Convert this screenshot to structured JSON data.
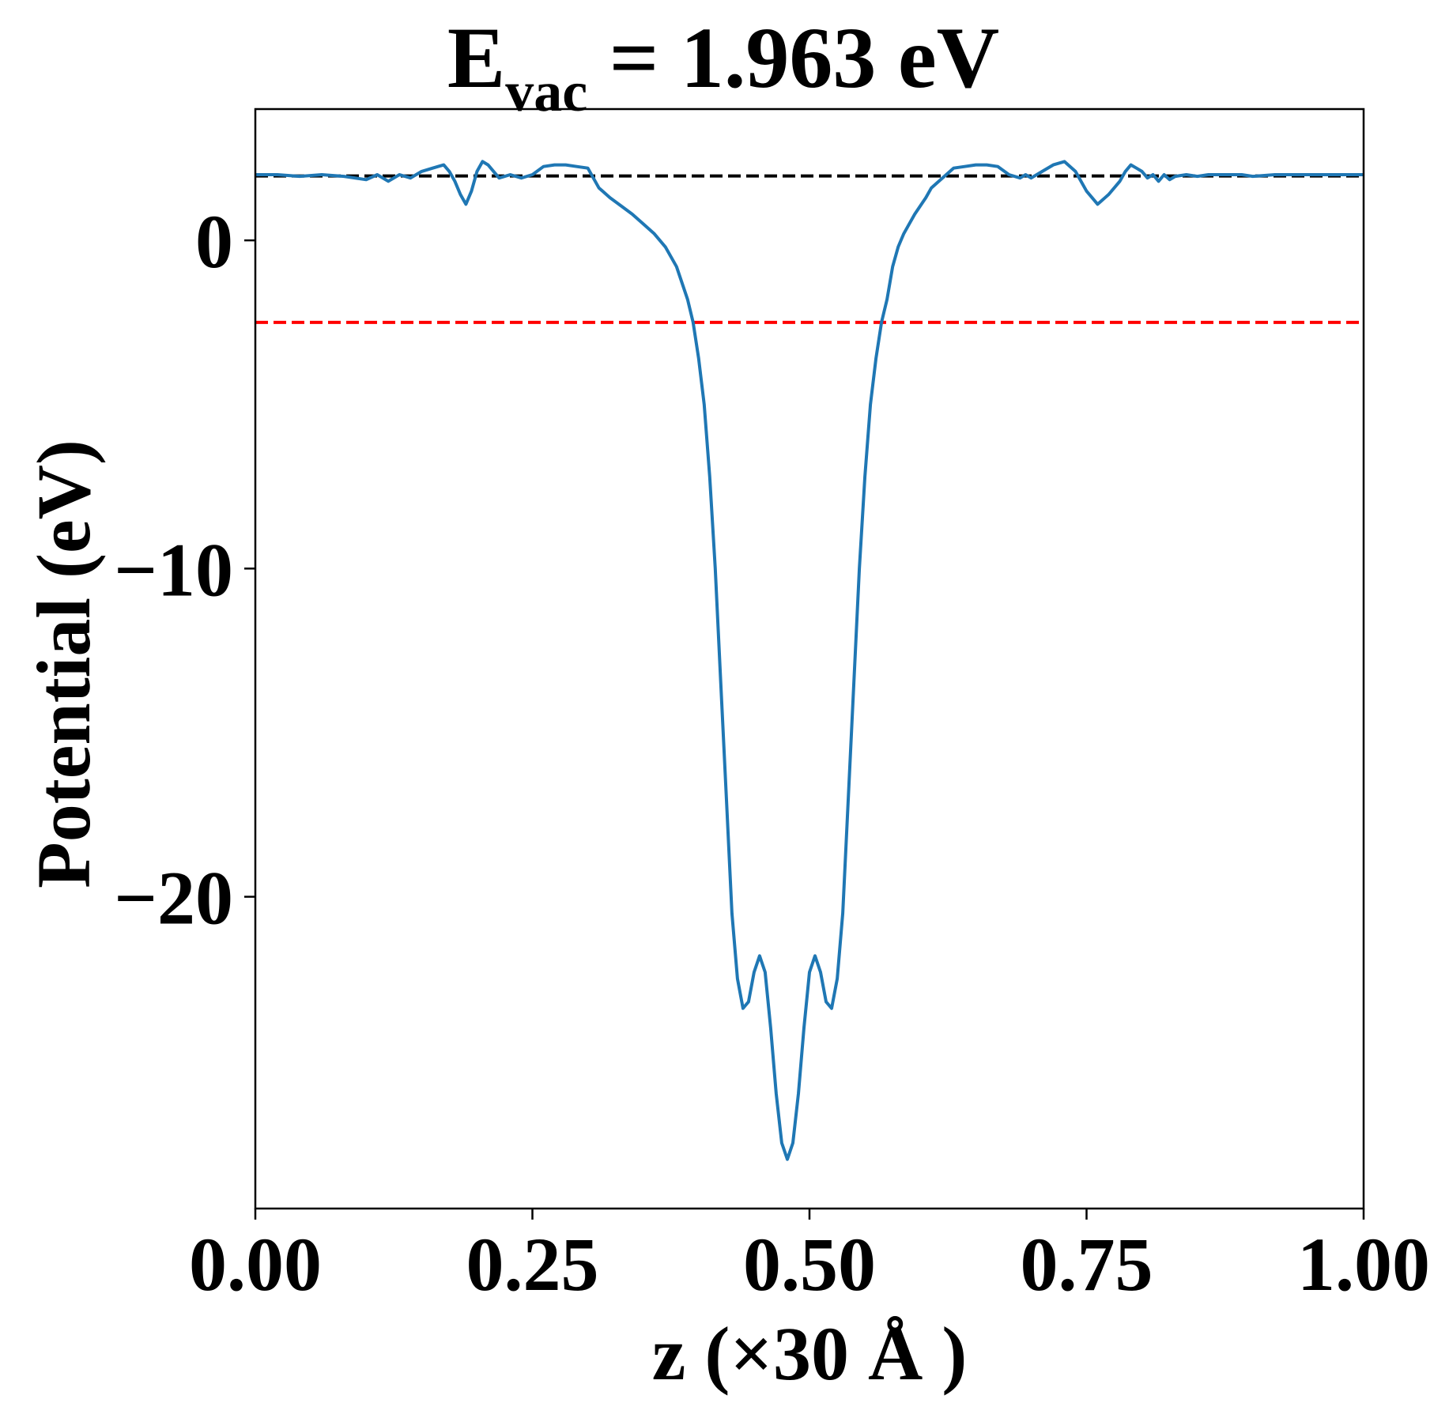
{
  "chart_data": {
    "type": "line",
    "title": {
      "main": "E",
      "subscript": "vac",
      "rest": " = 1.963 eV"
    },
    "xlabel": "z (×30 Å )",
    "ylabel": "Potential (eV)",
    "xlim": [
      0,
      1
    ],
    "ylim": [
      -29.5,
      4
    ],
    "x_ticks": [
      0,
      0.25,
      0.5,
      0.75,
      1.0
    ],
    "x_tick_labels": [
      "0.00",
      "0.25",
      "0.50",
      "0.75",
      "1.00"
    ],
    "y_ticks": [
      0,
      -10,
      -20
    ],
    "y_tick_labels": [
      "0",
      "−10",
      "−20"
    ],
    "grid": false,
    "reference_lines": [
      {
        "y": 1.963,
        "color": "#000000",
        "style": "dashed"
      },
      {
        "y": -2.5,
        "color": "#ff0000",
        "style": "dashed"
      }
    ],
    "series": [
      {
        "color": "#1f77b4",
        "x": [
          0.0,
          0.02,
          0.04,
          0.06,
          0.08,
          0.1,
          0.11,
          0.12,
          0.13,
          0.14,
          0.15,
          0.16,
          0.17,
          0.175,
          0.18,
          0.185,
          0.19,
          0.195,
          0.2,
          0.205,
          0.21,
          0.215,
          0.22,
          0.23,
          0.24,
          0.25,
          0.26,
          0.27,
          0.28,
          0.29,
          0.3,
          0.305,
          0.31,
          0.32,
          0.33,
          0.34,
          0.35,
          0.36,
          0.37,
          0.38,
          0.39,
          0.395,
          0.4,
          0.405,
          0.41,
          0.415,
          0.42,
          0.425,
          0.43,
          0.435,
          0.44,
          0.445,
          0.45,
          0.455,
          0.46,
          0.465,
          0.47,
          0.475,
          0.48,
          0.485,
          0.49,
          0.495,
          0.5,
          0.505,
          0.51,
          0.515,
          0.52,
          0.525,
          0.53,
          0.535,
          0.54,
          0.545,
          0.55,
          0.555,
          0.56,
          0.565,
          0.57,
          0.575,
          0.58,
          0.585,
          0.59,
          0.595,
          0.6,
          0.605,
          0.61,
          0.62,
          0.63,
          0.64,
          0.65,
          0.66,
          0.67,
          0.68,
          0.69,
          0.695,
          0.7,
          0.71,
          0.72,
          0.73,
          0.74,
          0.75,
          0.76,
          0.77,
          0.78,
          0.785,
          0.79,
          0.795,
          0.8,
          0.805,
          0.81,
          0.815,
          0.82,
          0.825,
          0.83,
          0.84,
          0.85,
          0.86,
          0.87,
          0.88,
          0.89,
          0.9,
          0.92,
          0.94,
          0.96,
          0.98,
          1.0
        ],
        "y": [
          2.0,
          2.0,
          1.95,
          2.0,
          1.95,
          1.85,
          2.0,
          1.8,
          2.0,
          1.9,
          2.1,
          2.2,
          2.3,
          2.1,
          1.8,
          1.4,
          1.1,
          1.5,
          2.1,
          2.4,
          2.3,
          2.1,
          1.9,
          2.0,
          1.9,
          2.0,
          2.25,
          2.3,
          2.3,
          2.25,
          2.2,
          1.9,
          1.6,
          1.3,
          1.05,
          0.8,
          0.5,
          0.2,
          -0.2,
          -0.8,
          -1.8,
          -2.5,
          -3.6,
          -5.0,
          -7.2,
          -10.0,
          -13.5,
          -17.0,
          -20.5,
          -22.5,
          -23.4,
          -23.2,
          -22.3,
          -21.8,
          -22.3,
          -24.0,
          -26.0,
          -27.5,
          -28.0,
          -27.5,
          -26.0,
          -24.0,
          -22.3,
          -21.8,
          -22.3,
          -23.2,
          -23.4,
          -22.5,
          -20.5,
          -17.0,
          -13.5,
          -10.0,
          -7.2,
          -5.0,
          -3.6,
          -2.5,
          -1.8,
          -0.8,
          -0.2,
          0.2,
          0.5,
          0.8,
          1.05,
          1.3,
          1.6,
          1.9,
          2.2,
          2.25,
          2.3,
          2.3,
          2.25,
          2.0,
          1.9,
          2.0,
          1.9,
          2.1,
          2.3,
          2.4,
          2.1,
          1.5,
          1.1,
          1.4,
          1.8,
          2.1,
          2.3,
          2.2,
          2.1,
          1.9,
          2.0,
          1.8,
          2.0,
          1.85,
          1.95,
          2.0,
          1.95,
          2.0,
          2.0,
          2.0,
          2.0,
          1.95,
          2.0,
          2.0,
          2.0,
          2.0,
          2.0
        ]
      }
    ]
  }
}
